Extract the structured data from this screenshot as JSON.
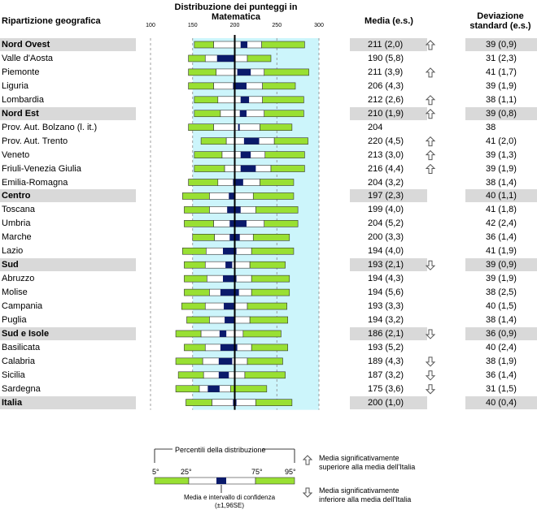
{
  "header": {
    "region_col": "Ripartizione geografica",
    "dist_title": "Distribuzione dei punteggi in Matematica",
    "mean_col": "Media (e.s.)",
    "sd_col": "Deviazione standard (e.s.)"
  },
  "chart_data": {
    "type": "percentile-box",
    "title": "Distribuzione dei punteggi in Matematica",
    "xlim": [
      100,
      300
    ],
    "ticks": [
      100,
      150,
      200,
      250,
      300
    ],
    "reference": 200,
    "rows": [
      {
        "region": "Nord Ovest",
        "group": true,
        "p5": 152,
        "p25": 175,
        "ci_lo": 207,
        "ci_hi": 215,
        "p75": 232,
        "p95": 283,
        "mean": "211 (2,0)",
        "sd": "39 (0,9)",
        "sig": "up"
      },
      {
        "region": "Valle d'Aosta",
        "group": false,
        "p5": 145,
        "p25": 165,
        "ci_lo": 179,
        "ci_hi": 201,
        "p75": 215,
        "p95": 243,
        "mean": "190 (5,8)",
        "sd": "31 (2,3)",
        "sig": ""
      },
      {
        "region": "Piemonte",
        "group": false,
        "p5": 145,
        "p25": 178,
        "ci_lo": 203,
        "ci_hi": 219,
        "p75": 235,
        "p95": 288,
        "mean": "211 (3,9)",
        "sd": "41 (1,7)",
        "sig": "up"
      },
      {
        "region": "Liguria",
        "group": false,
        "p5": 145,
        "p25": 175,
        "ci_lo": 198,
        "ci_hi": 214,
        "p75": 233,
        "p95": 272,
        "mean": "206 (4,3)",
        "sd": "39 (1,9)",
        "sig": ""
      },
      {
        "region": "Lombardia",
        "group": false,
        "p5": 152,
        "p25": 180,
        "ci_lo": 207,
        "ci_hi": 217,
        "p75": 233,
        "p95": 282,
        "mean": "212 (2,6)",
        "sd": "38 (1,1)",
        "sig": "up"
      },
      {
        "region": "Nord Est",
        "group": true,
        "p5": 152,
        "p25": 183,
        "ci_lo": 206,
        "ci_hi": 214,
        "p75": 235,
        "p95": 282,
        "mean": "210 (1,9)",
        "sd": "39 (0,8)",
        "sig": "up"
      },
      {
        "region": "Prov. Aut. Bolzano (l. it.)",
        "group": false,
        "p5": 145,
        "p25": 175,
        "ci_lo": 204,
        "ci_hi": 204,
        "p75": 230,
        "p95": 268,
        "mean": "204",
        "sd": "38",
        "sig": ""
      },
      {
        "region": "Prov. Aut. Trento",
        "group": false,
        "p5": 160,
        "p25": 190,
        "ci_lo": 211,
        "ci_hi": 229,
        "p75": 247,
        "p95": 287,
        "mean": "220 (4,5)",
        "sd": "41 (2,0)",
        "sig": "up"
      },
      {
        "region": "Veneto",
        "group": false,
        "p5": 152,
        "p25": 185,
        "ci_lo": 207,
        "ci_hi": 219,
        "p75": 236,
        "p95": 283,
        "mean": "213 (3,0)",
        "sd": "39 (1,3)",
        "sig": "up"
      },
      {
        "region": "Friuli-Venezia Giulia",
        "group": false,
        "p5": 152,
        "p25": 188,
        "ci_lo": 207,
        "ci_hi": 225,
        "p75": 243,
        "p95": 283,
        "mean": "216 (4,4)",
        "sd": "39 (1,9)",
        "sig": "up"
      },
      {
        "region": "Emilia-Romagna",
        "group": false,
        "p5": 145,
        "p25": 180,
        "ci_lo": 198,
        "ci_hi": 210,
        "p75": 230,
        "p95": 270,
        "mean": "204 (3,2)",
        "sd": "38 (1,4)",
        "sig": ""
      },
      {
        "region": "Centro",
        "group": true,
        "p5": 138,
        "p25": 170,
        "ci_lo": 193,
        "ci_hi": 201,
        "p75": 222,
        "p95": 270,
        "mean": "197 (2,3)",
        "sd": "40 (1,1)",
        "sig": ""
      },
      {
        "region": "Toscana",
        "group": false,
        "p5": 140,
        "p25": 170,
        "ci_lo": 191,
        "ci_hi": 207,
        "p75": 225,
        "p95": 275,
        "mean": "199 (4,0)",
        "sd": "41 (1,8)",
        "sig": ""
      },
      {
        "region": "Umbria",
        "group": false,
        "p5": 140,
        "p25": 175,
        "ci_lo": 194,
        "ci_hi": 214,
        "p75": 235,
        "p95": 275,
        "mean": "204 (5,2)",
        "sd": "42 (2,4)",
        "sig": ""
      },
      {
        "region": "Marche",
        "group": false,
        "p5": 150,
        "p25": 176,
        "ci_lo": 194,
        "ci_hi": 206,
        "p75": 222,
        "p95": 265,
        "mean": "200 (3,3)",
        "sd": "36 (1,4)",
        "sig": ""
      },
      {
        "region": "Lazio",
        "group": false,
        "p5": 138,
        "p25": 166,
        "ci_lo": 186,
        "ci_hi": 202,
        "p75": 220,
        "p95": 270,
        "mean": "194 (4,0)",
        "sd": "41 (1,9)",
        "sig": ""
      },
      {
        "region": "Sud",
        "group": true,
        "p5": 140,
        "p25": 165,
        "ci_lo": 189,
        "ci_hi": 197,
        "p75": 218,
        "p95": 260,
        "mean": "193 (2,1)",
        "sd": "39 (0,9)",
        "sig": "down"
      },
      {
        "region": "Abruzzo",
        "group": false,
        "p5": 140,
        "p25": 167,
        "ci_lo": 186,
        "ci_hi": 202,
        "p75": 220,
        "p95": 265,
        "mean": "194 (4,3)",
        "sd": "39 (1,9)",
        "sig": ""
      },
      {
        "region": "Molise",
        "group": false,
        "p5": 140,
        "p25": 170,
        "ci_lo": 183,
        "ci_hi": 205,
        "p75": 220,
        "p95": 265,
        "mean": "194 (5,6)",
        "sd": "38 (2,5)",
        "sig": ""
      },
      {
        "region": "Campania",
        "group": false,
        "p5": 137,
        "p25": 165,
        "ci_lo": 187,
        "ci_hi": 199,
        "p75": 215,
        "p95": 262,
        "mean": "193 (3,3)",
        "sd": "40 (1,5)",
        "sig": ""
      },
      {
        "region": "Puglia",
        "group": false,
        "p5": 143,
        "p25": 170,
        "ci_lo": 188,
        "ci_hi": 200,
        "p75": 218,
        "p95": 263,
        "mean": "194 (3,2)",
        "sd": "38 (1,4)",
        "sig": ""
      },
      {
        "region": "Sud e Isole",
        "group": true,
        "p5": 130,
        "p25": 160,
        "ci_lo": 182,
        "ci_hi": 190,
        "p75": 210,
        "p95": 255,
        "mean": "186 (2,1)",
        "sd": "36 (0,9)",
        "sig": "down"
      },
      {
        "region": "Basilicata",
        "group": false,
        "p5": 140,
        "p25": 165,
        "ci_lo": 183,
        "ci_hi": 203,
        "p75": 220,
        "p95": 263,
        "mean": "193 (5,2)",
        "sd": "40 (2,4)",
        "sig": ""
      },
      {
        "region": "Calabria",
        "group": false,
        "p5": 130,
        "p25": 162,
        "ci_lo": 181,
        "ci_hi": 197,
        "p75": 215,
        "p95": 257,
        "mean": "189 (4,3)",
        "sd": "38 (1,9)",
        "sig": "down"
      },
      {
        "region": "Sicilia",
        "group": false,
        "p5": 133,
        "p25": 163,
        "ci_lo": 181,
        "ci_hi": 193,
        "p75": 212,
        "p95": 260,
        "mean": "187 (3,2)",
        "sd": "36 (1,4)",
        "sig": "down"
      },
      {
        "region": "Sardegna",
        "group": false,
        "p5": 130,
        "p25": 158,
        "ci_lo": 168,
        "ci_hi": 182,
        "p75": 195,
        "p95": 238,
        "mean": "175 (3,6)",
        "sd": "31 (1,5)",
        "sig": "down"
      },
      {
        "region": "Italia",
        "group": true,
        "p5": 142,
        "p25": 173,
        "ci_lo": 198,
        "ci_hi": 202,
        "p75": 225,
        "p95": 268,
        "mean": "200 (1,0)",
        "sd": "40 (0,4)",
        "sig": ""
      }
    ]
  },
  "legend": {
    "percentili": "Percentili della distribuzione",
    "p5": "5°",
    "p25": "25°",
    "p75": "75°",
    "p95": "95°",
    "media_ci": "Media e intervallo di confidenza (±1,96SE)",
    "up_text": "Media significativamente superiore alla media dell'Italia",
    "down_text": "Media significativamente inferiore alla media dell'Italia"
  },
  "colors": {
    "band": "#d9d9d9",
    "plot_bg": "#ccf5fb",
    "green": "#99e033",
    "ci": "#0a1a6b"
  }
}
